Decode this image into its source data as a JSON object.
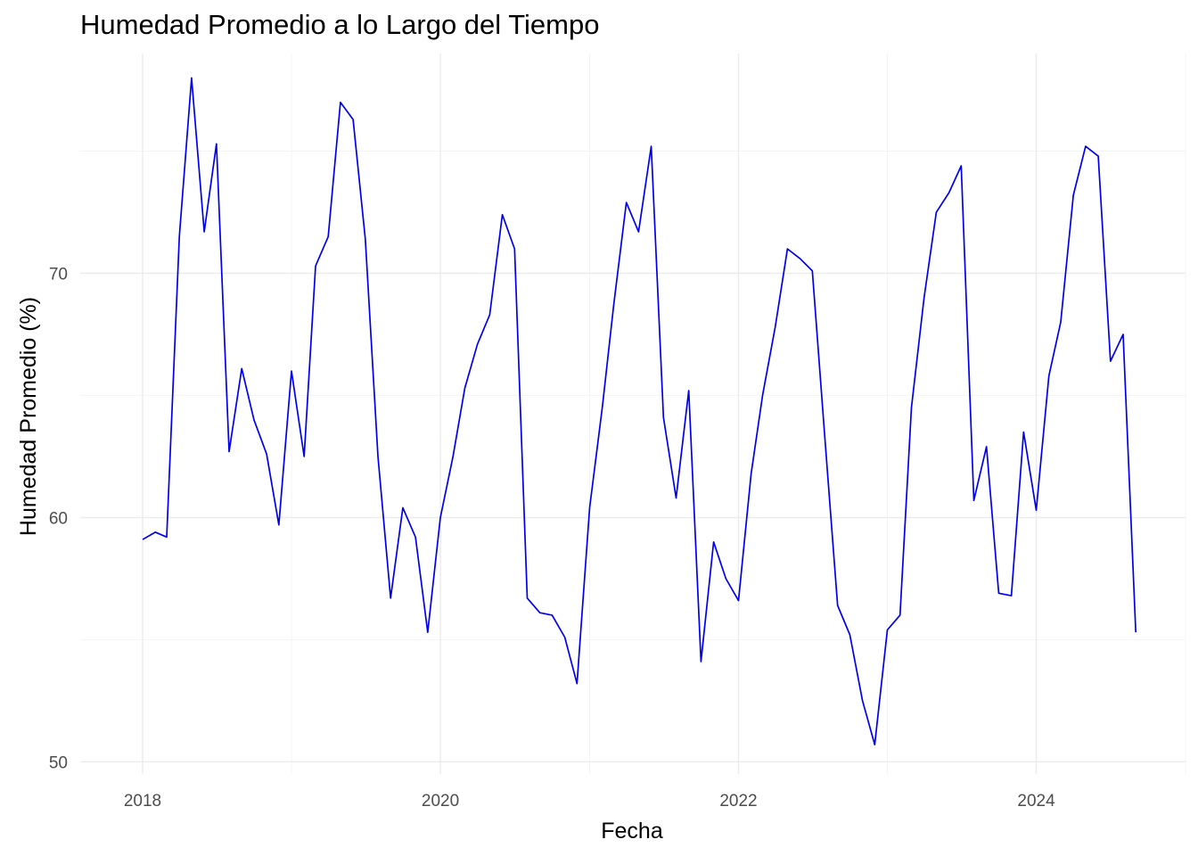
{
  "chart_data": {
    "type": "line",
    "title": "Humedad Promedio a lo Largo del Tiempo",
    "xlabel": "Fecha",
    "ylabel": "Humedad Promedio (%)",
    "x_tick_labels": [
      "2018",
      "2020",
      "2022",
      "2024"
    ],
    "y_tick_labels": [
      "50",
      "60",
      "70"
    ],
    "xlim": [
      "2017-08-01",
      "2025-01-01"
    ],
    "ylim": [
      49.5,
      79.0
    ],
    "grid": true,
    "line_color": "#0000ee",
    "series": [
      {
        "values": [
          [
            "2018-01",
            59.1
          ],
          [
            "2018-02",
            59.4
          ],
          [
            "2018-03",
            59.2
          ],
          [
            "2018-04",
            71.5
          ],
          [
            "2018-05",
            78.0
          ],
          [
            "2018-06",
            71.7
          ],
          [
            "2018-07",
            75.3
          ],
          [
            "2018-08",
            62.7
          ],
          [
            "2018-09",
            66.1
          ],
          [
            "2018-10",
            64.0
          ],
          [
            "2018-11",
            62.6
          ],
          [
            "2018-12",
            59.7
          ],
          [
            "2019-01",
            66.0
          ],
          [
            "2019-02",
            62.5
          ],
          [
            "2019-03",
            70.3
          ],
          [
            "2019-04",
            71.5
          ],
          [
            "2019-05",
            77.0
          ],
          [
            "2019-06",
            76.3
          ],
          [
            "2019-07",
            71.4
          ],
          [
            "2019-08",
            62.5
          ],
          [
            "2019-09",
            56.7
          ],
          [
            "2019-10",
            60.4
          ],
          [
            "2019-11",
            59.2
          ],
          [
            "2019-12",
            55.3
          ],
          [
            "2020-01",
            60.0
          ],
          [
            "2020-02",
            62.5
          ],
          [
            "2020-03",
            65.3
          ],
          [
            "2020-04",
            67.1
          ],
          [
            "2020-05",
            68.3
          ],
          [
            "2020-06",
            72.4
          ],
          [
            "2020-07",
            71.0
          ],
          [
            "2020-08",
            56.7
          ],
          [
            "2020-09",
            56.1
          ],
          [
            "2020-10",
            56.0
          ],
          [
            "2020-11",
            55.1
          ],
          [
            "2020-12",
            53.2
          ],
          [
            "2021-01",
            60.4
          ],
          [
            "2021-02",
            64.5
          ],
          [
            "2021-03",
            68.7
          ],
          [
            "2021-04",
            72.9
          ],
          [
            "2021-05",
            71.7
          ],
          [
            "2021-06",
            75.2
          ],
          [
            "2021-07",
            64.1
          ],
          [
            "2021-08",
            60.8
          ],
          [
            "2021-09",
            65.2
          ],
          [
            "2021-10",
            54.1
          ],
          [
            "2021-11",
            59.0
          ],
          [
            "2021-12",
            57.5
          ],
          [
            "2022-01",
            56.6
          ],
          [
            "2022-02",
            61.8
          ],
          [
            "2022-03",
            65.0
          ],
          [
            "2022-04",
            67.8
          ],
          [
            "2022-05",
            71.0
          ],
          [
            "2022-06",
            70.6
          ],
          [
            "2022-07",
            70.1
          ],
          [
            "2022-08",
            63.2
          ],
          [
            "2022-09",
            56.4
          ],
          [
            "2022-10",
            55.2
          ],
          [
            "2022-11",
            52.5
          ],
          [
            "2022-12",
            50.7
          ],
          [
            "2023-01",
            55.4
          ],
          [
            "2023-02",
            56.0
          ],
          [
            "2023-03",
            64.5
          ],
          [
            "2023-04",
            69.0
          ],
          [
            "2023-05",
            72.5
          ],
          [
            "2023-06",
            73.3
          ],
          [
            "2023-07",
            74.4
          ],
          [
            "2023-08",
            60.7
          ],
          [
            "2023-09",
            62.9
          ],
          [
            "2023-10",
            56.9
          ],
          [
            "2023-11",
            56.8
          ],
          [
            "2023-12",
            63.5
          ],
          [
            "2024-01",
            60.3
          ],
          [
            "2024-02",
            65.8
          ],
          [
            "2024-03",
            68.0
          ],
          [
            "2024-04",
            73.2
          ],
          [
            "2024-05",
            75.2
          ],
          [
            "2024-06",
            74.8
          ],
          [
            "2024-07",
            66.4
          ],
          [
            "2024-08",
            67.5
          ],
          [
            "2024-09",
            55.3
          ]
        ]
      }
    ]
  }
}
